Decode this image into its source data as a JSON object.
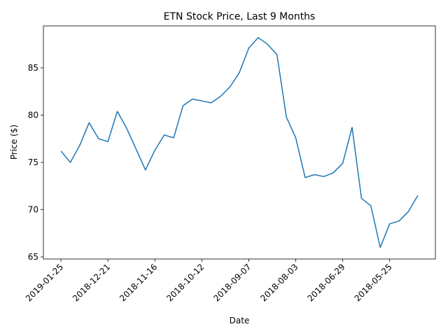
{
  "chart_data": {
    "type": "line",
    "title": "ETN Stock Price, Last 9 Months",
    "x_label": "Date",
    "y_label": "Price ($)",
    "categories": [
      "2019-01-25",
      null,
      null,
      null,
      null,
      "2018-12-21",
      null,
      null,
      null,
      null,
      "2018-11-16",
      null,
      null,
      null,
      null,
      "2018-10-12",
      null,
      null,
      null,
      null,
      "2018-09-07",
      null,
      null,
      null,
      null,
      "2018-08-03",
      null,
      null,
      null,
      null,
      "2018-06-29",
      null,
      null,
      null,
      null,
      "2018-05-25",
      null,
      null,
      null
    ],
    "series": [
      {
        "name": "ETN",
        "color": "#1f77b4",
        "values": [
          76.2,
          75.0,
          76.8,
          79.2,
          77.5,
          77.2,
          80.4,
          78.6,
          76.4,
          74.2,
          76.3,
          77.9,
          77.6,
          81.0,
          81.7,
          81.5,
          81.3,
          82.0,
          83.0,
          84.5,
          87.1,
          88.2,
          87.5,
          86.4,
          79.8,
          77.6,
          73.4,
          73.7,
          73.5,
          73.9,
          74.9,
          78.7,
          71.2,
          70.4,
          66.0,
          68.5,
          68.8,
          69.8,
          71.5
        ]
      }
    ],
    "ylim": [
      64.78,
      89.44
    ],
    "yticks": [
      65,
      70,
      75,
      80,
      85
    ]
  }
}
